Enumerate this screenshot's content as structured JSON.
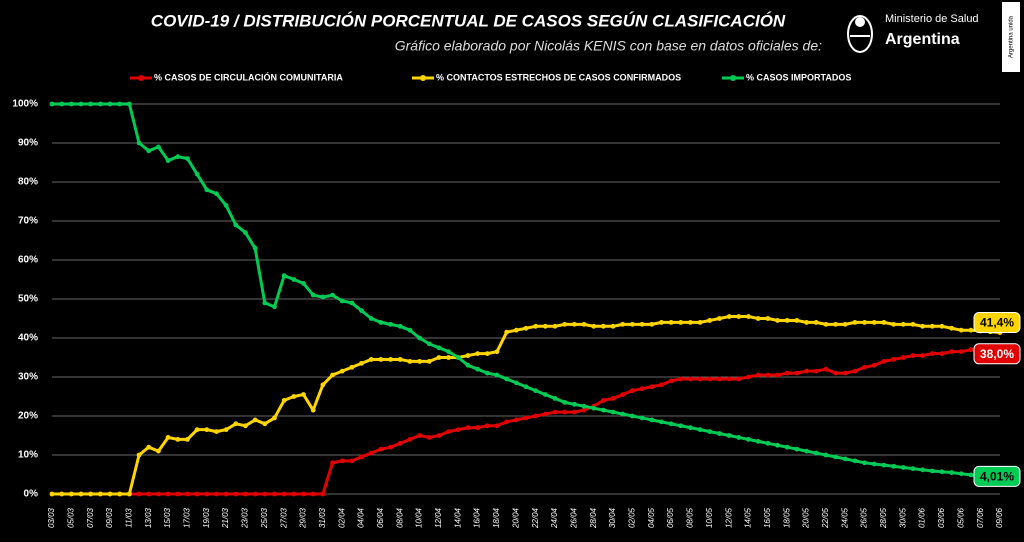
{
  "chart_data": {
    "type": "line",
    "title": "COVID-19  /  DISTRIBUCIÓN PORCENTUAL DE CASOS SEGÚN CLASIFICACIÓN",
    "subtitle": "Gráfico elaborado por Nicolás KENIS con base en datos oficiales de:",
    "logo_text": [
      "Ministerio de Salud",
      "Argentina"
    ],
    "badge": "Argentina unida",
    "categories": [
      "03/03",
      null,
      "05/03",
      null,
      "07/03",
      null,
      "09/03",
      null,
      "11/03",
      null,
      "13/03",
      null,
      "15/03",
      null,
      "17/03",
      null,
      "19/03",
      null,
      "21/03",
      null,
      "23/03",
      null,
      "25/03",
      null,
      "27/03",
      null,
      "29/03",
      null,
      "31/03",
      null,
      "02/04",
      null,
      "04/04",
      null,
      "06/04",
      null,
      "08/04",
      null,
      "10/04",
      null,
      "12/04",
      null,
      "14/04",
      null,
      "16/04",
      null,
      "18/04",
      null,
      "20/04",
      null,
      "22/04",
      null,
      "24/04",
      null,
      "26/04",
      null,
      "28/04",
      null,
      "30/04",
      null,
      "02/05",
      null,
      "04/05",
      null,
      "06/05",
      null,
      "08/05",
      null,
      "10/05",
      null,
      "12/05",
      null,
      "14/05",
      null,
      "16/05",
      null,
      "18/05",
      null,
      "20/05",
      null,
      "22/05",
      null,
      "24/05",
      null,
      "26/05",
      null,
      "28/05",
      null,
      "30/05",
      null,
      "01/06",
      null,
      "03/06",
      null,
      "05/06",
      null,
      "07/06",
      null,
      "09/06"
    ],
    "series": [
      {
        "name": "% CASOS DE CIRCULACIÓN COMUNITARIA",
        "color": "#e00000",
        "values": [
          0,
          0,
          0,
          0,
          0,
          0,
          0,
          0,
          0,
          0,
          0,
          0,
          0,
          0,
          0,
          0,
          0,
          0,
          0,
          0,
          0,
          0,
          0,
          0,
          0,
          0,
          0,
          0,
          0,
          8,
          8.5,
          8.5,
          9.5,
          10.5,
          11.5,
          12,
          13,
          14,
          15,
          14.5,
          15,
          16,
          16.5,
          17,
          17,
          17.5,
          17.5,
          18.5,
          19,
          19.5,
          20,
          20.5,
          21,
          21,
          21,
          21.5,
          22.5,
          24,
          24.5,
          25.5,
          26.5,
          27,
          27.5,
          28,
          29,
          29.5,
          29.5,
          29.5,
          29.5,
          29.5,
          29.5,
          29.5,
          30,
          30.5,
          30.5,
          30.5,
          31,
          31,
          31.5,
          31.5,
          32,
          31,
          31,
          31.5,
          32.5,
          33,
          34,
          34.5,
          35,
          35.5,
          35.5,
          36,
          36,
          36.5,
          36.5,
          37,
          37,
          37.5,
          38
        ],
        "value_labels": [
          null,
          null,
          null,
          null,
          null,
          null,
          null,
          null,
          null,
          null,
          null,
          null,
          null,
          null,
          null,
          null,
          null,
          null,
          null,
          null,
          null,
          null,
          null,
          null,
          null,
          null,
          null,
          null,
          null,
          null,
          null,
          null,
          null,
          null,
          null,
          null,
          null,
          null,
          null,
          null,
          null,
          null,
          null,
          null,
          null,
          null,
          null,
          null,
          null,
          null,
          null,
          null,
          null,
          null,
          null,
          null,
          null,
          null,
          null,
          null,
          null,
          null,
          null,
          null,
          null,
          null,
          null,
          null,
          null,
          null,
          null,
          null,
          null,
          null,
          null,
          null,
          null,
          null,
          null,
          null,
          null,
          null,
          null,
          null,
          null,
          null,
          null,
          null,
          null,
          null,
          null,
          null,
          null,
          null,
          null,
          null,
          null,
          null,
          "38,0%"
        ]
      },
      {
        "name": "% CONTACTOS ESTRECHOS DE CASOS CONFIRMADOS",
        "color": "#ffd500",
        "values": [
          0,
          0,
          0,
          0,
          0,
          0,
          0,
          0,
          0,
          10,
          12,
          11,
          14.5,
          14,
          14,
          16.5,
          16.5,
          16,
          16.5,
          18,
          17.5,
          19,
          18,
          19.5,
          24,
          25,
          25.5,
          21.5,
          28,
          30.5,
          31.5,
          32.5,
          33.5,
          34.5,
          34.5,
          34.5,
          34.5,
          34,
          34,
          34,
          35,
          35,
          35,
          35.5,
          36,
          36,
          36.5,
          41.5,
          42,
          42.5,
          43,
          43,
          43,
          43.5,
          43.5,
          43.5,
          43,
          43,
          43,
          43.5,
          43.5,
          43.5,
          43.5,
          44,
          44,
          44,
          44,
          44,
          44.5,
          45,
          45.5,
          45.5,
          45.5,
          45,
          45,
          44.5,
          44.5,
          44.5,
          44,
          44,
          43.5,
          43.5,
          43.5,
          44,
          44,
          44,
          44,
          43.5,
          43.5,
          43.5,
          43,
          43,
          43,
          42.5,
          42,
          42,
          41.8,
          41.6,
          41.4
        ],
        "value_labels": [
          null,
          null,
          null,
          null,
          null,
          null,
          null,
          null,
          null,
          null,
          null,
          null,
          null,
          null,
          null,
          null,
          null,
          null,
          null,
          null,
          null,
          null,
          null,
          null,
          null,
          null,
          null,
          null,
          null,
          null,
          null,
          null,
          null,
          null,
          null,
          null,
          null,
          null,
          null,
          null,
          null,
          null,
          null,
          null,
          null,
          null,
          null,
          null,
          null,
          null,
          null,
          null,
          null,
          null,
          null,
          null,
          null,
          null,
          null,
          null,
          null,
          null,
          null,
          null,
          null,
          null,
          null,
          null,
          null,
          null,
          null,
          null,
          null,
          null,
          null,
          null,
          null,
          null,
          null,
          null,
          null,
          null,
          null,
          null,
          null,
          null,
          null,
          null,
          null,
          null,
          null,
          null,
          null,
          null,
          null,
          null,
          null,
          null,
          "41,4%"
        ]
      },
      {
        "name": "% CASOS IMPORTADOS",
        "color": "#00cc55",
        "values": [
          100,
          100,
          100,
          100,
          100,
          100,
          100,
          100,
          100,
          90,
          88,
          89,
          85.5,
          86.5,
          86,
          82,
          78,
          77,
          74,
          69,
          67,
          63,
          49,
          48,
          56,
          55,
          54,
          51,
          50.5,
          51,
          49.5,
          49,
          47,
          45,
          44,
          43.5,
          43,
          42,
          40,
          38.5,
          37.5,
          36.5,
          35,
          33,
          32,
          31,
          30.5,
          29.5,
          28.5,
          27.5,
          26.5,
          25.5,
          24.5,
          23.5,
          23,
          22.5,
          22,
          21.5,
          21,
          20.5,
          20,
          19.5,
          19,
          18.5,
          18,
          17.5,
          17,
          16.5,
          16,
          15.5,
          15,
          14.5,
          14,
          13.5,
          13,
          12.5,
          12,
          11.5,
          11,
          10.5,
          10,
          9.5,
          9,
          8.5,
          8,
          7.7,
          7.4,
          7.1,
          6.8,
          6.5,
          6.2,
          5.9,
          5.7,
          5.5,
          5.2,
          4.9,
          4.6,
          4.3,
          4.01
        ],
        "value_labels": [
          null,
          null,
          null,
          null,
          null,
          null,
          null,
          null,
          null,
          null,
          null,
          null,
          null,
          null,
          null,
          null,
          null,
          null,
          null,
          null,
          null,
          null,
          null,
          null,
          null,
          null,
          null,
          null,
          null,
          null,
          null,
          null,
          null,
          null,
          null,
          null,
          null,
          null,
          null,
          null,
          null,
          null,
          null,
          null,
          null,
          null,
          null,
          null,
          null,
          null,
          null,
          null,
          null,
          null,
          null,
          null,
          null,
          null,
          null,
          null,
          null,
          null,
          null,
          null,
          null,
          null,
          null,
          null,
          null,
          null,
          null,
          null,
          null,
          null,
          null,
          null,
          null,
          null,
          null,
          null,
          null,
          null,
          null,
          null,
          null,
          null,
          null,
          null,
          null,
          null,
          null,
          null,
          null,
          null,
          null,
          null,
          null,
          null,
          "4,01%"
        ]
      }
    ],
    "ylim": [
      0,
      100
    ],
    "yticks": [
      {
        "value": 0,
        "label": "0%"
      },
      {
        "value": 10,
        "label": "10%"
      },
      {
        "value": 20,
        "label": "20%"
      },
      {
        "value": 30,
        "label": "30%"
      },
      {
        "value": 40,
        "label": "40%"
      },
      {
        "value": 50,
        "label": "50%"
      },
      {
        "value": 60,
        "label": "60%"
      },
      {
        "value": 70,
        "label": "70%"
      },
      {
        "value": 80,
        "label": "80%"
      },
      {
        "value": 90,
        "label": "90%"
      },
      {
        "value": 100,
        "label": "100%"
      }
    ],
    "grid": true,
    "legend": "top"
  }
}
